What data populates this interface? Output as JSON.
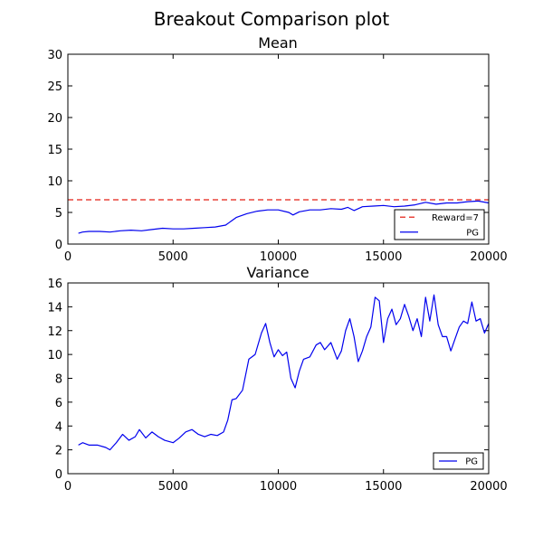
{
  "figure": {
    "title": "Breakout Comparison plot"
  },
  "colors": {
    "pg_line": "#0000ee",
    "reward_line": "#e8453c"
  },
  "chart_data": [
    {
      "type": "line",
      "title": "Mean",
      "xlabel": "",
      "ylabel": "",
      "xlim": [
        0,
        20000
      ],
      "ylim": [
        0,
        30
      ],
      "xticks": [
        0,
        5000,
        10000,
        15000,
        20000
      ],
      "yticks": [
        0,
        5,
        10,
        15,
        20,
        25,
        30
      ],
      "grid": false,
      "legend_position": "lower-right",
      "series": [
        {
          "name": "Reward=7",
          "style": "dashed",
          "color": "#e8453c",
          "x": [
            0,
            20000
          ],
          "y": [
            7,
            7
          ]
        },
        {
          "name": "PG",
          "style": "solid",
          "color": "#0000ee",
          "x": [
            500,
            700,
            1000,
            1500,
            2000,
            2500,
            3000,
            3500,
            4000,
            4500,
            5000,
            5500,
            6000,
            6500,
            7000,
            7500,
            8000,
            8500,
            9000,
            9500,
            10000,
            10500,
            10700,
            11000,
            11500,
            12000,
            12500,
            13000,
            13300,
            13600,
            14000,
            14500,
            15000,
            15500,
            16000,
            16500,
            17000,
            17500,
            18000,
            18500,
            19000,
            19500,
            20000
          ],
          "y": [
            1.7,
            1.9,
            2.0,
            2.0,
            1.9,
            2.1,
            2.2,
            2.1,
            2.3,
            2.5,
            2.4,
            2.4,
            2.5,
            2.6,
            2.7,
            3.0,
            4.2,
            4.8,
            5.2,
            5.4,
            5.4,
            5.0,
            4.6,
            5.1,
            5.4,
            5.4,
            5.6,
            5.5,
            5.8,
            5.3,
            5.9,
            6.0,
            6.1,
            5.9,
            6.0,
            6.2,
            6.6,
            6.3,
            6.5,
            6.5,
            6.7,
            6.8,
            6.5
          ]
        }
      ]
    },
    {
      "type": "line",
      "title": "Variance",
      "xlabel": "",
      "ylabel": "",
      "xlim": [
        0,
        20000
      ],
      "ylim": [
        0,
        16
      ],
      "xticks": [
        0,
        5000,
        10000,
        15000,
        20000
      ],
      "yticks": [
        0,
        2,
        4,
        6,
        8,
        10,
        12,
        14,
        16
      ],
      "grid": false,
      "legend_position": "lower-right",
      "series": [
        {
          "name": "PG",
          "style": "solid",
          "color": "#0000ee",
          "x": [
            500,
            700,
            1000,
            1400,
            1800,
            2000,
            2300,
            2600,
            2900,
            3200,
            3400,
            3700,
            4000,
            4300,
            4600,
            5000,
            5300,
            5600,
            5900,
            6200,
            6500,
            6800,
            7100,
            7400,
            7600,
            7800,
            8000,
            8300,
            8600,
            8900,
            9200,
            9400,
            9600,
            9800,
            10000,
            10200,
            10400,
            10600,
            10800,
            11000,
            11200,
            11500,
            11800,
            12000,
            12200,
            12500,
            12800,
            13000,
            13200,
            13400,
            13600,
            13800,
            14000,
            14200,
            14400,
            14600,
            14800,
            15000,
            15200,
            15400,
            15600,
            15800,
            16000,
            16200,
            16400,
            16600,
            16800,
            17000,
            17200,
            17400,
            17600,
            17800,
            18000,
            18200,
            18400,
            18600,
            18800,
            19000,
            19200,
            19400,
            19600,
            19800,
            20000
          ],
          "y": [
            2.4,
            2.6,
            2.4,
            2.4,
            2.2,
            2.0,
            2.6,
            3.3,
            2.8,
            3.1,
            3.7,
            3.0,
            3.5,
            3.1,
            2.8,
            2.6,
            3.0,
            3.5,
            3.7,
            3.3,
            3.1,
            3.3,
            3.2,
            3.5,
            4.5,
            6.2,
            6.3,
            7.0,
            9.6,
            10.0,
            11.8,
            12.6,
            11.0,
            9.8,
            10.4,
            9.9,
            10.2,
            8.0,
            7.2,
            8.6,
            9.6,
            9.8,
            10.8,
            11.0,
            10.4,
            11.0,
            9.6,
            10.3,
            12.0,
            13.0,
            11.5,
            9.4,
            10.3,
            11.5,
            12.3,
            14.8,
            14.5,
            11.0,
            13.0,
            13.8,
            12.5,
            13.0,
            14.2,
            13.2,
            12.0,
            13.0,
            11.5,
            14.8,
            12.8,
            15.0,
            12.5,
            11.5,
            11.5,
            10.3,
            11.3,
            12.3,
            12.8,
            12.6,
            14.4,
            12.8,
            13.0,
            11.8,
            12.6
          ]
        }
      ]
    }
  ]
}
